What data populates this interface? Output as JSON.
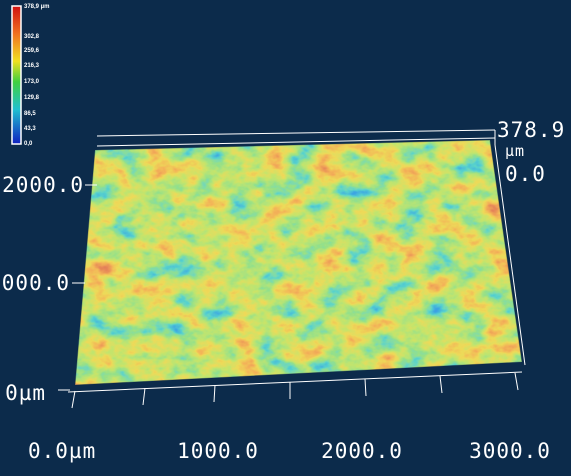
{
  "colorbar": {
    "labels": [
      "378,9 µm",
      "302,8",
      "259,6",
      "216,3",
      "173,0",
      "129,8",
      "86,5",
      "43,3",
      "0,0"
    ]
  },
  "z_axis": {
    "max": "378.9",
    "unit": "µm",
    "min": "0.0"
  },
  "y_axis": {
    "labels": [
      "2000.0",
      "000.0",
      "0µm"
    ]
  },
  "x_axis": {
    "labels": [
      "0.0µm",
      "1000.0",
      "2000.0",
      "3000.0"
    ]
  }
}
